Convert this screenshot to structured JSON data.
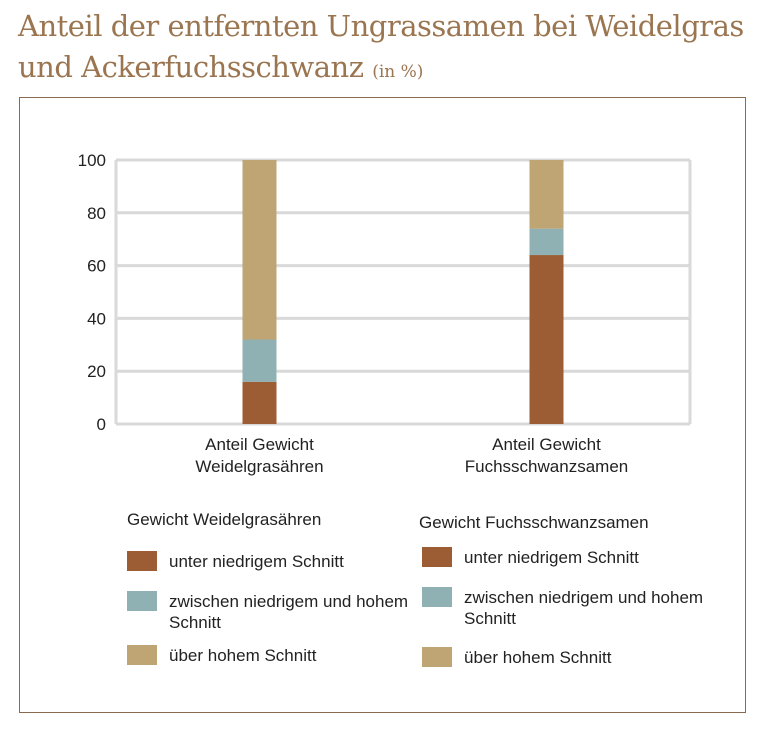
{
  "title": {
    "main": "Anteil der entfernten Ungrassamen bei Weidelgras und Ackerfuchsschwanz",
    "unit": "(in %)"
  },
  "colors": {
    "title": "#9a7550",
    "frame": "#8a6a4e",
    "grid": "#d9d9d9",
    "unter": "#9c5d34",
    "zwischen": "#8fb1b3",
    "ueber": "#bfa474"
  },
  "chart_data": {
    "type": "bar",
    "stacked": true,
    "categories": [
      [
        "Anteil Gewicht",
        "Weidelgrasähren"
      ],
      [
        "Anteil Gewicht",
        "Fuchsschwanzsamen"
      ]
    ],
    "ylim": [
      0,
      100
    ],
    "yticks": [
      "0",
      "20",
      "40",
      "60",
      "80",
      "100"
    ],
    "grid": true,
    "series": [
      {
        "name": "unter niedrigem Schnitt",
        "values": [
          16,
          64
        ],
        "color": "#9c5d34"
      },
      {
        "name": "zwischen niedrigem und hohem Schnitt",
        "values": [
          16,
          10
        ],
        "color": "#8fb1b3"
      },
      {
        "name": "über hohem Schnitt",
        "values": [
          68,
          26
        ],
        "color": "#bfa474"
      }
    ]
  },
  "legends": [
    {
      "heading": "Gewicht Weidelgrasähren",
      "items": [
        {
          "label": "unter niedrigem Schnitt",
          "color": "#9c5d34"
        },
        {
          "label": "zwischen niedrigem und hohem Schnitt",
          "color": "#8fb1b3"
        },
        {
          "label": "über hohem Schnitt",
          "color": "#bfa474"
        }
      ]
    },
    {
      "heading": "Gewicht Fuchsschwanzsamen",
      "items": [
        {
          "label": "unter niedrigem Schnitt",
          "color": "#9c5d34"
        },
        {
          "label": "zwischen niedrigem und hohem Schnitt",
          "color": "#8fb1b3"
        },
        {
          "label": "über hohem Schnitt",
          "color": "#bfa474"
        }
      ]
    }
  ]
}
